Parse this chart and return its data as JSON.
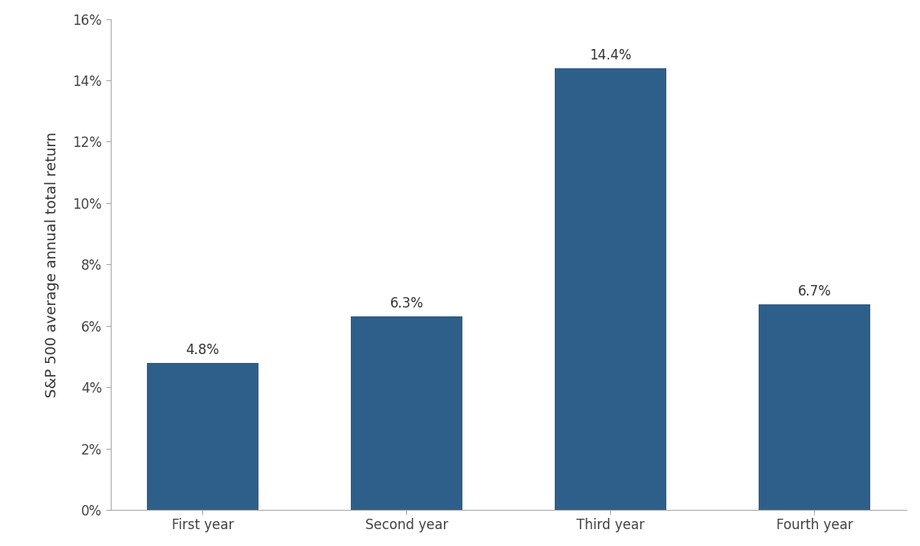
{
  "categories": [
    "First year",
    "Second year",
    "Third year",
    "Fourth year"
  ],
  "values": [
    4.8,
    6.3,
    14.4,
    6.7
  ],
  "bar_color": "#2e5f8a",
  "ylabel": "S&P 500 average annual total return",
  "ylim": [
    0,
    16
  ],
  "yticks": [
    0,
    2,
    4,
    6,
    8,
    10,
    12,
    14,
    16
  ],
  "ytick_labels": [
    "0%",
    "2%",
    "4%",
    "6%",
    "8%",
    "10%",
    "12%",
    "14%",
    "16%"
  ],
  "bar_width": 0.55,
  "label_fontsize": 12,
  "ylabel_fontsize": 13,
  "xtick_fontsize": 12,
  "ytick_fontsize": 12,
  "background_color": "#ffffff",
  "annotation_format": [
    "4.8%",
    "6.3%",
    "14.4%",
    "6.7%"
  ]
}
